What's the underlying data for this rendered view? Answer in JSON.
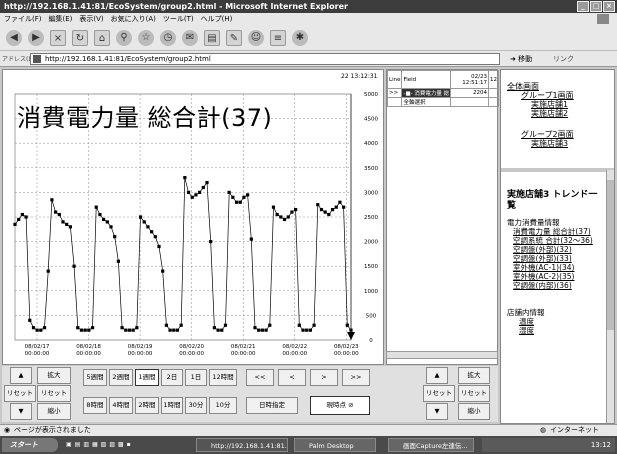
{
  "window": {
    "title": "http://192.168.1.41:81/EcoSystem/group2.html - Microsoft Internet Explorer"
  },
  "menu": {
    "items": [
      "ファイル(F)",
      "編集(E)",
      "表示(V)",
      "お気に入り(A)",
      "ツール(T)",
      "ヘルプ(H)"
    ]
  },
  "address": {
    "label": "アドレス(D)",
    "url": "http://192.168.1.41:81/EcoSystem/group2.html",
    "go": "移動",
    "links": "リンク"
  },
  "chart": {
    "title": "消費電力量 総合計(37)",
    "timestamp": "22 13:12:31"
  },
  "chart_data": {
    "type": "line",
    "title": "消費電力量 総合計(37)",
    "ylim": [
      0,
      5000
    ],
    "yticks": [
      "5000",
      "4500",
      "4000",
      "3500",
      "3000",
      "2500",
      "2000",
      "1500",
      "1000",
      "500",
      "0"
    ],
    "xticks": [
      {
        "date": "08/02/17",
        "time": "00:00:00"
      },
      {
        "date": "08/02/18",
        "time": "00:00:00"
      },
      {
        "date": "08/02/19",
        "time": "00:00:00"
      },
      {
        "date": "08/02/20",
        "time": "00:00:00"
      },
      {
        "date": "08/02/21",
        "time": "00:00:00"
      },
      {
        "date": "08/02/22",
        "time": "00:00:00"
      },
      {
        "date": "08/02/23",
        "time": "00:00:00"
      }
    ],
    "series": [
      {
        "values": [
          2350,
          2450,
          2550,
          2500,
          400,
          250,
          200,
          200,
          250,
          1400,
          2850,
          2600,
          2550,
          2400,
          2350,
          2300,
          1500,
          250,
          200,
          200,
          200,
          250,
          2700,
          2550,
          2450,
          2400,
          2300,
          2100,
          1600,
          250,
          200,
          200,
          200,
          250,
          2500,
          2400,
          2300,
          2200,
          2100,
          1900,
          1400,
          300,
          200,
          200,
          200,
          300,
          3300,
          3000,
          2900,
          2950,
          3000,
          3100,
          3200,
          2000,
          250,
          200,
          200,
          300,
          3000,
          2900,
          2800,
          2800,
          2900,
          2950,
          2050,
          250,
          200,
          200,
          200,
          300,
          2700,
          2550,
          2500,
          2450,
          2500,
          2600,
          2650,
          300,
          200,
          200,
          200,
          300,
          2750,
          2650,
          2600,
          2550,
          2650,
          2700,
          2800,
          2700,
          300,
          200
        ]
      }
    ]
  },
  "table": {
    "headers": [
      "Line",
      "Field",
      "02/23 12:51:17",
      "12"
    ],
    "row1": {
      "arrow": ">>",
      "marker": "-■-",
      "field": "消費電力量 総",
      "value": "2204"
    },
    "row2": {
      "field": "全軸選択"
    }
  },
  "side_top": {
    "all": "全体画面",
    "group1": "グループ1画面",
    "store1": "実施店舗1",
    "store2": "実施店舗2",
    "group2": "グループ2画面",
    "store3": "実施店舗3"
  },
  "side_bottom": {
    "heading": "実施店舗3 トレンド一覧",
    "section1": "電力消費量情報",
    "links": [
      "消費電力量 総合計(37)",
      "空調系統 合計(32～36)",
      "空調盤(外部)(32)",
      "空調盤(外部)(33)",
      "室外機(AC-1)(34)",
      "室外機(AC-2)(35)",
      "空調盤(内部)(36)"
    ],
    "section2": "店舗内情報",
    "links2": [
      "温度",
      "湿度"
    ]
  },
  "controls": {
    "expand": "拡大",
    "reset": "リセット",
    "shrink": "縮小",
    "up": "▲",
    "down": "▼",
    "ranges_top": [
      "5週間",
      "2週間",
      "1週間",
      "2日",
      "1日",
      "12時間"
    ],
    "ranges_bottom": [
      "8時間",
      "4時間",
      "2時間",
      "1時間",
      "30分",
      "10分"
    ],
    "nav": [
      "<<",
      "<",
      ">",
      ">>"
    ],
    "specify_time": "日時指定",
    "current_point": "現時点"
  },
  "status": {
    "left": "ページが表示されました",
    "zone": "インターネット"
  },
  "taskbar": {
    "start": "スタート",
    "tasks": [
      "http://192.168.1.41:81...",
      "Palm Desktop",
      "画面Capture左連伝..."
    ],
    "clock": "13:12"
  }
}
